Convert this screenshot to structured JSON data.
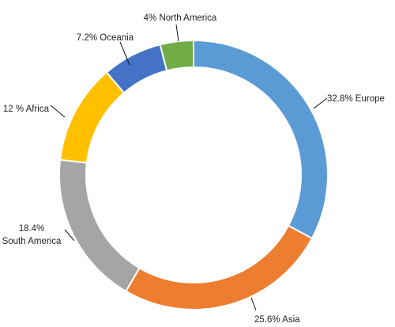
{
  "chart_data": {
    "type": "pie",
    "title": "",
    "series": [
      {
        "name": "",
        "values": [
          32.8,
          25.6,
          18.4,
          12,
          7.2,
          4
        ]
      }
    ],
    "slices": [
      {
        "label": "Europe",
        "value": 32.8,
        "text": "32.8% Europe",
        "color": "#5B9BD5"
      },
      {
        "label": "Asia",
        "value": 25.6,
        "text": "25.6% Asia",
        "color": "#ED7D31"
      },
      {
        "label": "South America",
        "value": 18.4,
        "text": [
          "18.4%",
          "South America"
        ],
        "color": "#A5A5A5"
      },
      {
        "label": "Africa",
        "value": 12,
        "text": "12 % Africa",
        "color": "#FFC000"
      },
      {
        "label": "Oceania",
        "value": 7.2,
        "text": "7.2% Oceania",
        "color": "#4472C4"
      },
      {
        "label": "North America",
        "value": 4,
        "text": "4% North America",
        "color": "#70AD47"
      }
    ],
    "donut": true,
    "legend": "none"
  }
}
